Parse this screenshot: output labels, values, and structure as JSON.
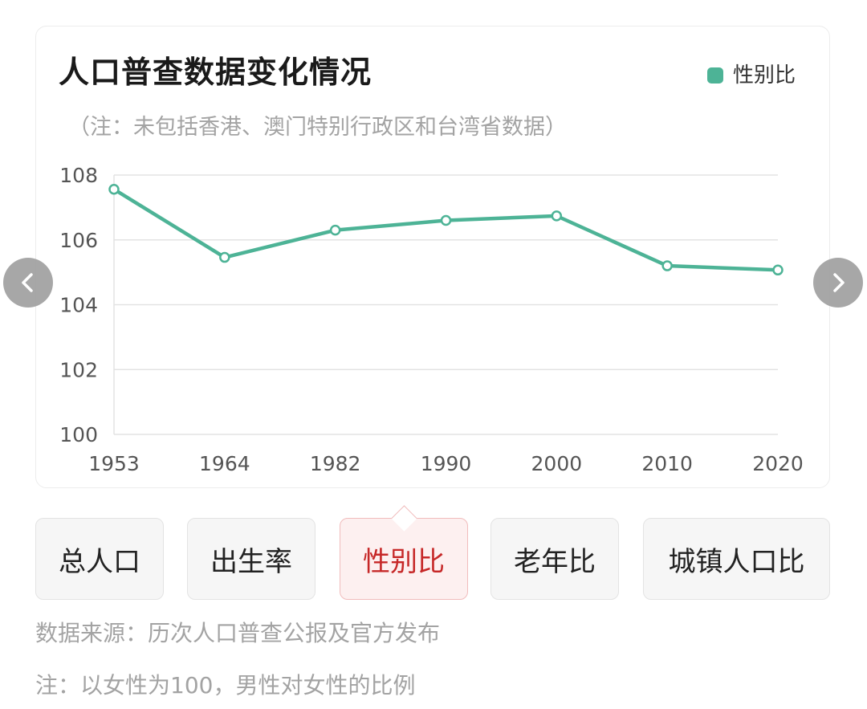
{
  "colors": {
    "series": "#4db396",
    "grid": "#e3e3e3",
    "axis_text": "#555555",
    "active_tab_text": "#c62828"
  },
  "chart_data": {
    "type": "line",
    "title": "人口普查数据变化情况",
    "subtitle": "（注：未包括香港、澳门特别行政区和台湾省数据）",
    "x": [
      "1953",
      "1964",
      "1982",
      "1990",
      "2000",
      "2010",
      "2020"
    ],
    "series": [
      {
        "name": "性别比",
        "values": [
          107.56,
          105.46,
          106.3,
          106.6,
          106.74,
          105.2,
          105.07
        ]
      }
    ],
    "ylim": [
      100,
      108
    ],
    "yticks": [
      100,
      102,
      104,
      106,
      108
    ],
    "grid": true,
    "legend_position": "top-right"
  },
  "nav": {
    "prev_icon": "chevron-left-icon",
    "next_icon": "chevron-right-icon"
  },
  "tabs": [
    {
      "label": "总人口",
      "active": false
    },
    {
      "label": "出生率",
      "active": false
    },
    {
      "label": "性别比",
      "active": true
    },
    {
      "label": "老年比",
      "active": false
    },
    {
      "label": "城镇人口比",
      "active": false
    }
  ],
  "footer": {
    "source": "数据来源：历次人口普查公报及官方发布",
    "note": "注：以女性为100，男性对女性的比例"
  }
}
